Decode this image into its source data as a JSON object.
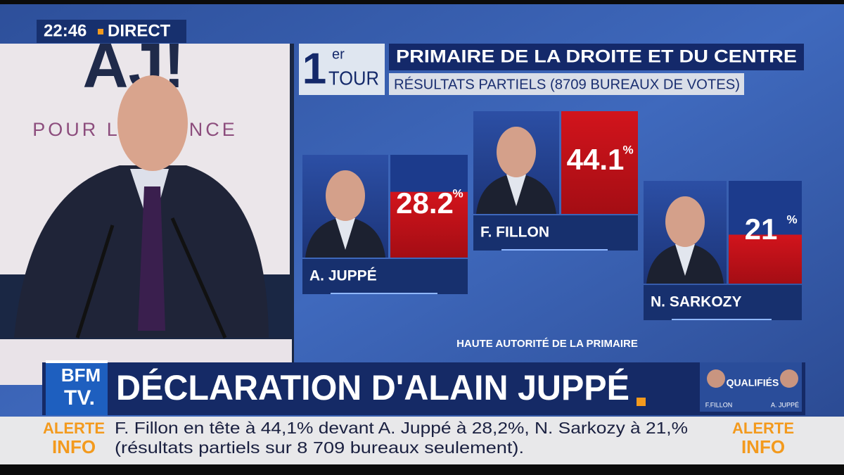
{
  "clock": {
    "time": "22:46",
    "label": "DIRECT"
  },
  "backdrop": {
    "logo": "AJ!",
    "slogan": "POUR LA FRANCE"
  },
  "results": {
    "round_number": "1",
    "round_suffix": "er",
    "round_word": "TOUR",
    "title": "PRIMAIRE DE LA DROITE ET DU CENTRE",
    "subtitle": "RÉSULTATS PARTIELS (8709 BUREAUX DE VOTES)",
    "candidates": [
      {
        "name": "A. JUPPÉ",
        "value": 28.2,
        "unit": "%"
      },
      {
        "name": "F. FILLON",
        "value": 44.1,
        "unit": "%"
      },
      {
        "name": "N. SARKOZY",
        "value": 21,
        "unit": "%"
      }
    ],
    "source": "HAUTE AUTORITÉ DE LA PRIMAIRE"
  },
  "channel": {
    "line1": "BFM",
    "line2": "TV."
  },
  "headline": "DÉCLARATION D'ALAIN JUPPÉ",
  "thumbnail": {
    "label": "QUALIFIÉS",
    "left": "F.FILLON",
    "right": "A. JUPPÉ"
  },
  "ticker": {
    "alert_line1": "ALERTE",
    "alert_line2": "INFO",
    "line1": "F. Fillon en tête à 44,1% devant A. Juppé à 28,2%, N. Sarkozy à 21,%",
    "line2": "(résultats partiels sur 8 709 bureaux seulement)."
  }
}
